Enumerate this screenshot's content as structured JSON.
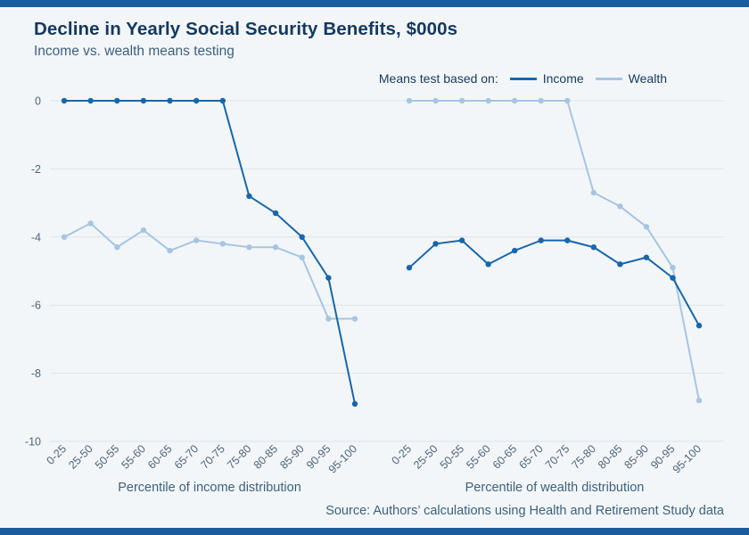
{
  "colors": {
    "background": "#f3f6f9",
    "accent_bar": "#1a5c9e",
    "income": "#1667ac",
    "wealth": "#a6c5e3",
    "grid": "#dde4eb"
  },
  "page": {
    "title": "Decline in Yearly Social Security Benefits, $000s",
    "subtitle": "Income vs. wealth means testing",
    "source": "Source: Authors’ calculations using Health and Retirement Study data"
  },
  "legend": {
    "label": "Means test based on:",
    "items": [
      {
        "name": "Income",
        "color": "#1667ac"
      },
      {
        "name": "Wealth",
        "color": "#a6c5e3"
      }
    ]
  },
  "chart_data": {
    "type": "line",
    "title": "Decline in Yearly Social Security Benefits, $000s",
    "subtitle": "Income vs. wealth means testing",
    "legend_title": "Means test based on:",
    "legend_position": "top-right",
    "grid": true,
    "ylim": [
      -10,
      0
    ],
    "yticks": [
      0,
      -2,
      -4,
      -6,
      -8,
      -10
    ],
    "categories": [
      "0-25",
      "25-50",
      "50-55",
      "55-60",
      "60-65",
      "65-70",
      "70-75",
      "75-80",
      "80-85",
      "85-90",
      "90-95",
      "95-100"
    ],
    "panels": [
      {
        "xlabel": "Percentile of income distribution",
        "series": [
          {
            "name": "Income",
            "values": [
              0,
              0,
              0,
              0,
              0,
              0,
              0,
              -2.8,
              -3.3,
              -4.0,
              -5.2,
              -8.9
            ]
          },
          {
            "name": "Wealth",
            "values": [
              -4.0,
              -3.6,
              -4.3,
              -3.8,
              -4.4,
              -4.1,
              -4.2,
              -4.3,
              -4.3,
              -4.6,
              -6.4,
              -6.4
            ]
          }
        ]
      },
      {
        "xlabel": "Percentile of wealth distribution",
        "series": [
          {
            "name": "Income",
            "values": [
              -4.9,
              -4.2,
              -4.1,
              -4.8,
              -4.4,
              -4.1,
              -4.1,
              -4.3,
              -4.8,
              -4.6,
              -5.2,
              -6.6
            ]
          },
          {
            "name": "Wealth",
            "values": [
              0,
              0,
              0,
              0,
              0,
              0,
              0,
              -2.7,
              -3.1,
              -3.7,
              -4.9,
              -8.8
            ]
          }
        ]
      }
    ],
    "source": "Source: Authors’ calculations using Health and Retirement Study data"
  }
}
